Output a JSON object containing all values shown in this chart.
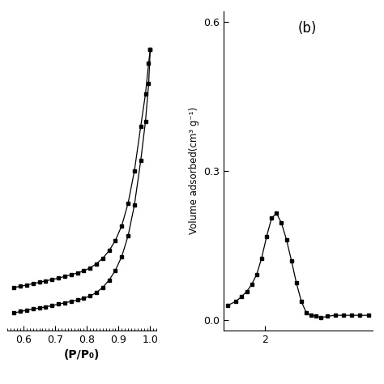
{
  "panel_a": {
    "xlabel": "(P/P₀)",
    "xlim": [
      0.55,
      1.02
    ],
    "ylim": [
      0.05,
      0.98
    ],
    "xticks": [
      0.6,
      0.7,
      0.8,
      0.9,
      1.0
    ],
    "adsorption_x": [
      0.57,
      0.59,
      0.61,
      0.63,
      0.65,
      0.67,
      0.69,
      0.71,
      0.73,
      0.75,
      0.77,
      0.79,
      0.81,
      0.83,
      0.85,
      0.87,
      0.89,
      0.91,
      0.93,
      0.95,
      0.97,
      0.985,
      0.995,
      1.0
    ],
    "adsorption_y": [
      0.1,
      0.105,
      0.108,
      0.112,
      0.115,
      0.118,
      0.122,
      0.126,
      0.13,
      0.134,
      0.138,
      0.143,
      0.15,
      0.16,
      0.175,
      0.196,
      0.225,
      0.265,
      0.325,
      0.415,
      0.545,
      0.66,
      0.77,
      0.87
    ],
    "desorption_x": [
      0.57,
      0.59,
      0.61,
      0.63,
      0.65,
      0.67,
      0.69,
      0.71,
      0.73,
      0.75,
      0.77,
      0.79,
      0.81,
      0.83,
      0.85,
      0.87,
      0.89,
      0.91,
      0.93,
      0.95,
      0.97,
      0.985,
      0.995,
      1.0
    ],
    "desorption_y": [
      0.175,
      0.178,
      0.182,
      0.186,
      0.19,
      0.194,
      0.198,
      0.202,
      0.207,
      0.212,
      0.217,
      0.223,
      0.232,
      0.244,
      0.26,
      0.282,
      0.312,
      0.355,
      0.42,
      0.515,
      0.645,
      0.74,
      0.83,
      0.87
    ]
  },
  "panel_b": {
    "label": "(b)",
    "ylabel": "Volume adsorbed(cm³ g⁻¹)",
    "xlim": [
      1.5,
      3.3
    ],
    "ylim": [
      -0.02,
      0.62
    ],
    "yticks": [
      0.0,
      0.3,
      0.6
    ],
    "xtick_labels": [
      "2"
    ],
    "xtick_positions": [
      2.0
    ],
    "pore_x": [
      1.55,
      1.65,
      1.72,
      1.78,
      1.84,
      1.9,
      1.96,
      2.02,
      2.08,
      2.14,
      2.2,
      2.26,
      2.32,
      2.38,
      2.44,
      2.5,
      2.56,
      2.62,
      2.68,
      2.75,
      2.85,
      2.95,
      3.05,
      3.15,
      3.25
    ],
    "pore_y": [
      0.03,
      0.038,
      0.048,
      0.058,
      0.072,
      0.092,
      0.125,
      0.168,
      0.205,
      0.215,
      0.195,
      0.162,
      0.12,
      0.075,
      0.038,
      0.015,
      0.01,
      0.008,
      0.005,
      0.008,
      0.01,
      0.01,
      0.01,
      0.01,
      0.01
    ]
  },
  "background_color": "#ffffff",
  "line_color": "#000000",
  "marker": "s",
  "markersize": 3.5,
  "linewidth": 0.9
}
